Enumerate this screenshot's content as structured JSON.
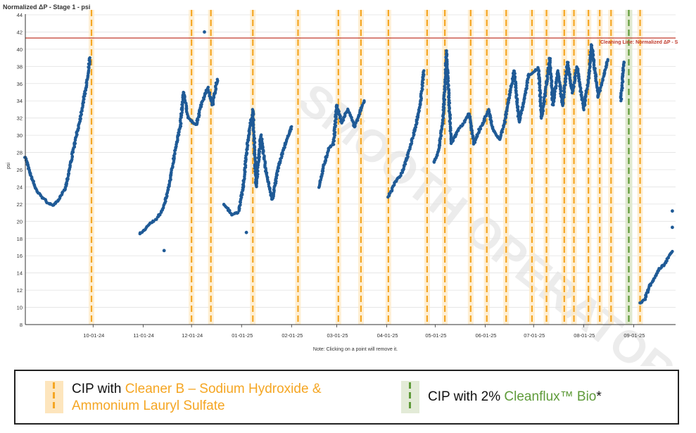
{
  "chart_data": {
    "type": "scatter",
    "title": "Normalized ΔP - Stage 1 - psi",
    "ylabel": "psi",
    "xlabel": "",
    "ylim": [
      8,
      44
    ],
    "yticks": [
      8,
      10,
      12,
      14,
      16,
      18,
      20,
      22,
      24,
      26,
      28,
      30,
      32,
      34,
      36,
      38,
      40,
      42,
      44
    ],
    "x_axis": {
      "range": [
        "2024-08-20",
        "2025-09-27"
      ],
      "ticks": [
        {
          "date": "2024-10-01",
          "label": "10-01-24"
        },
        {
          "date": "2024-11-01",
          "label": "11-01-24"
        },
        {
          "date": "2024-12-01",
          "label": "12-01-24"
        },
        {
          "date": "2025-01-01",
          "label": "01-01-25"
        },
        {
          "date": "2025-02-01",
          "label": "02-01-25"
        },
        {
          "date": "2025-03-01",
          "label": "03-01-25"
        },
        {
          "date": "2025-04-01",
          "label": "04-01-25"
        },
        {
          "date": "2025-05-01",
          "label": "05-01-25"
        },
        {
          "date": "2025-06-01",
          "label": "06-01-25"
        },
        {
          "date": "2025-07-01",
          "label": "07-01-25"
        },
        {
          "date": "2025-08-01",
          "label": "08-01-25"
        },
        {
          "date": "2025-09-01",
          "label": "09-01-25"
        }
      ]
    },
    "grid": "horizontal",
    "threshold": {
      "value": 41.3,
      "label": "Cleaning Line: Normalized ΔP - S",
      "color": "#c0392b"
    },
    "note": "Note: Clicking on a point will remove it.",
    "series_color": "#1f5a96",
    "segments": [
      [
        [
          "2024-08-20",
          27.5
        ],
        [
          "2024-08-23",
          25.5
        ],
        [
          "2024-08-27",
          23.5
        ],
        [
          "2024-09-02",
          22.3
        ],
        [
          "2024-09-06",
          21.8
        ],
        [
          "2024-09-10",
          22.6
        ],
        [
          "2024-09-14",
          24.0
        ],
        [
          "2024-09-19",
          28.5
        ],
        [
          "2024-09-23",
          32.0
        ],
        [
          "2024-09-27",
          36.0
        ],
        [
          "2024-09-29",
          39.0
        ]
      ],
      [
        [
          "2024-10-30",
          18.5
        ],
        [
          "2024-11-04",
          19.5
        ],
        [
          "2024-11-09",
          20.2
        ],
        [
          "2024-11-12",
          21.0
        ],
        [
          "2024-11-15",
          22.5
        ],
        [
          "2024-11-18",
          25.0
        ],
        [
          "2024-11-21",
          28.5
        ],
        [
          "2024-11-24",
          31.0
        ],
        [
          "2024-11-26",
          35.0
        ],
        [
          "2024-11-29",
          32.0
        ],
        [
          "2024-12-04",
          31.2
        ],
        [
          "2024-12-07",
          33.5
        ],
        [
          "2024-12-11",
          35.5
        ],
        [
          "2024-12-14",
          33.5
        ],
        [
          "2024-12-17",
          36.5
        ]
      ],
      [
        [
          "2024-12-21",
          22.0
        ],
        [
          "2024-12-26",
          20.8
        ],
        [
          "2024-12-30",
          21.0
        ],
        [
          "2025-01-02",
          24.0
        ],
        [
          "2025-01-05",
          29.5
        ],
        [
          "2025-01-08",
          33.0
        ],
        [
          "2025-01-10",
          24.0
        ],
        [
          "2025-01-13",
          30.0
        ],
        [
          "2025-01-16",
          26.0
        ],
        [
          "2025-01-20",
          22.5
        ],
        [
          "2025-01-24",
          26.5
        ],
        [
          "2025-01-29",
          29.5
        ],
        [
          "2025-02-01",
          31.0
        ]
      ],
      [
        [
          "2025-02-18",
          24.0
        ],
        [
          "2025-02-21",
          26.5
        ],
        [
          "2025-02-24",
          28.5
        ],
        [
          "2025-02-27",
          29.0
        ],
        [
          "2025-03-01",
          33.5
        ],
        [
          "2025-03-04",
          31.5
        ],
        [
          "2025-03-08",
          33.0
        ],
        [
          "2025-03-12",
          31.0
        ],
        [
          "2025-03-15",
          32.5
        ],
        [
          "2025-03-18",
          34.0
        ]
      ],
      [
        [
          "2025-04-02",
          22.8
        ],
        [
          "2025-04-06",
          24.5
        ],
        [
          "2025-04-10",
          25.5
        ],
        [
          "2025-04-13",
          27.0
        ],
        [
          "2025-04-16",
          29.0
        ],
        [
          "2025-04-19",
          31.0
        ],
        [
          "2025-04-22",
          34.0
        ],
        [
          "2025-04-24",
          37.5
        ]
      ],
      [
        [
          "2025-04-30",
          26.8
        ],
        [
          "2025-05-03",
          28.0
        ],
        [
          "2025-05-06",
          32.0
        ],
        [
          "2025-05-08",
          39.5
        ],
        [
          "2025-05-11",
          29.0
        ],
        [
          "2025-05-15",
          30.5
        ],
        [
          "2025-05-19",
          31.5
        ],
        [
          "2025-05-22",
          32.5
        ],
        [
          "2025-05-25",
          29.0
        ],
        [
          "2025-05-28",
          30.5
        ],
        [
          "2025-05-31",
          31.5
        ],
        [
          "2025-06-03",
          33.0
        ],
        [
          "2025-06-06",
          30.5
        ],
        [
          "2025-06-10",
          29.5
        ],
        [
          "2025-06-13",
          31.5
        ],
        [
          "2025-06-16",
          34.5
        ],
        [
          "2025-06-19",
          37.5
        ],
        [
          "2025-06-22",
          31.5
        ],
        [
          "2025-06-25",
          34.0
        ],
        [
          "2025-06-28",
          37.0
        ],
        [
          "2025-07-01",
          37.3
        ],
        [
          "2025-07-04",
          37.8
        ],
        [
          "2025-07-06",
          32.0
        ],
        [
          "2025-07-08",
          34.5
        ],
        [
          "2025-07-11",
          39.0
        ],
        [
          "2025-07-13",
          33.5
        ],
        [
          "2025-07-16",
          37.5
        ],
        [
          "2025-07-19",
          33.5
        ],
        [
          "2025-07-22",
          38.5
        ],
        [
          "2025-07-25",
          35.0
        ],
        [
          "2025-07-28",
          38.0
        ],
        [
          "2025-08-01",
          33.0
        ],
        [
          "2025-08-04",
          36.5
        ],
        [
          "2025-08-06",
          40.5
        ],
        [
          "2025-08-10",
          34.5
        ],
        [
          "2025-08-13",
          36.5
        ],
        [
          "2025-08-16",
          38.8
        ]
      ],
      [
        [
          "2025-08-24",
          34.0
        ],
        [
          "2025-08-25",
          36.0
        ],
        [
          "2025-08-26",
          38.5
        ]
      ],
      [
        [
          "2025-09-05",
          10.5
        ],
        [
          "2025-09-08",
          11.0
        ],
        [
          "2025-09-11",
          12.5
        ],
        [
          "2025-09-14",
          13.5
        ],
        [
          "2025-09-17",
          14.5
        ],
        [
          "2025-09-20",
          15.0
        ],
        [
          "2025-09-23",
          16.0
        ],
        [
          "2025-09-25",
          16.5
        ]
      ]
    ],
    "outliers": [
      [
        "2024-12-09",
        42.0
      ],
      [
        "2024-11-14",
        16.6
      ],
      [
        "2025-01-04",
        18.7
      ],
      [
        "2025-05-08",
        39.8
      ],
      [
        "2025-09-25",
        21.2
      ],
      [
        "2025-09-25",
        19.3
      ]
    ],
    "cleaner_b_dates": [
      "2024-09-30",
      "2024-12-01",
      "2024-12-13",
      "2025-01-08",
      "2025-02-05",
      "2025-03-02",
      "2025-03-16",
      "2025-04-02",
      "2025-04-26",
      "2025-05-07",
      "2025-05-23",
      "2025-06-02",
      "2025-06-14",
      "2025-06-30",
      "2025-07-09",
      "2025-07-20",
      "2025-07-26",
      "2025-08-04",
      "2025-08-11",
      "2025-08-18",
      "2025-08-29",
      "2025-09-05"
    ],
    "cleanflux_date": "2025-08-29",
    "legend": [
      {
        "prefix": "CIP with ",
        "highlight": "Cleaner B – Sodium Hydroxide & Ammonium Lauryl Sulfate",
        "color": "#f5a623",
        "suffix": ""
      },
      {
        "prefix": "CIP with 2% ",
        "highlight": "Cleanflux™ Bio",
        "color": "#5f9b3a",
        "suffix": "*"
      }
    ]
  },
  "watermark": "SMOOTH OPERATOR"
}
